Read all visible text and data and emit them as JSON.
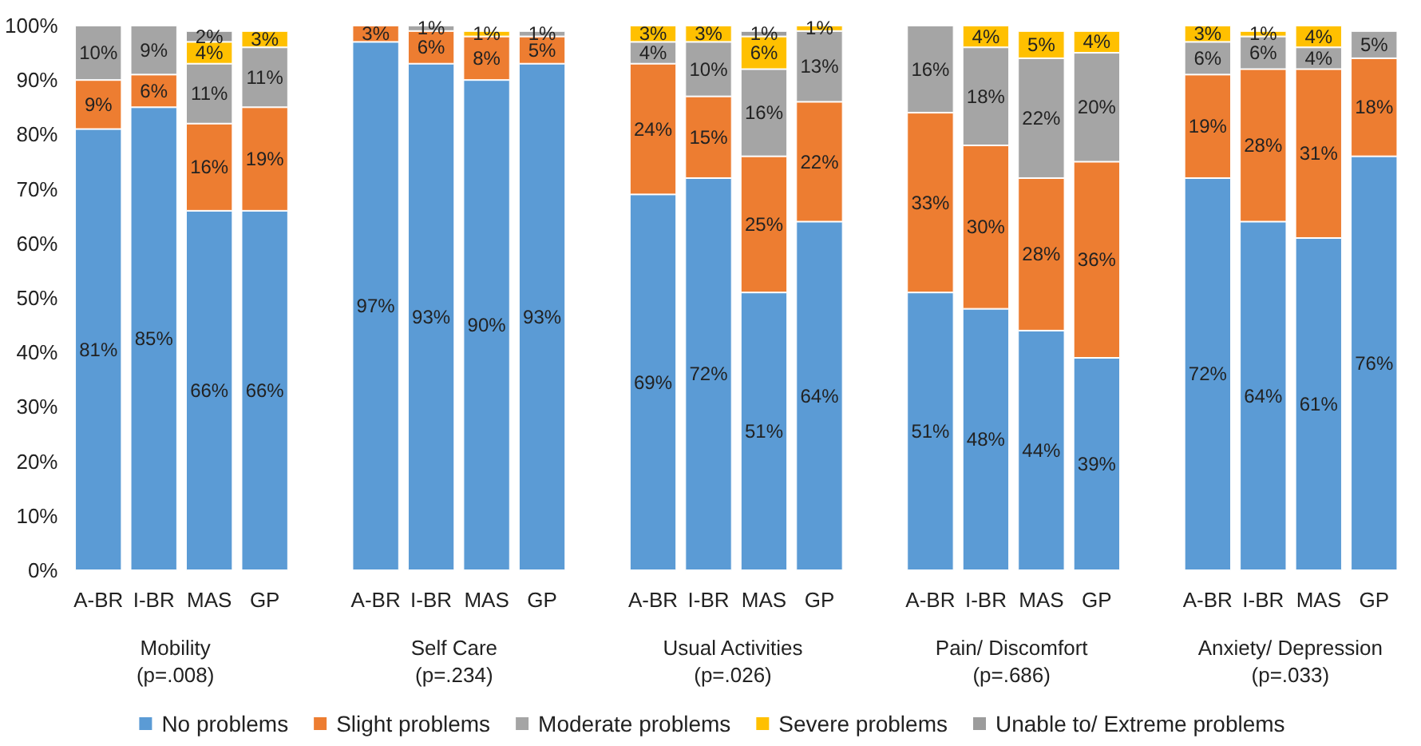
{
  "chart_data": {
    "type": "bar",
    "stacked": true,
    "categories": [
      "A-BR",
      "I-BR",
      "MAS",
      "GP",
      null,
      "A-BR",
      "I-BR",
      "MAS",
      "GP",
      null,
      "A-BR",
      "I-BR",
      "MAS",
      "GP",
      null,
      "A-BR",
      "I-BR",
      "MAS",
      "GP",
      null,
      "A-BR",
      "I-BR",
      "MAS",
      "GP"
    ],
    "series": [
      {
        "name": "No problems",
        "color": "#5b9bd5",
        "values": [
          81,
          85,
          66,
          66,
          null,
          97,
          93,
          90,
          93,
          null,
          69,
          72,
          51,
          64,
          null,
          51,
          48,
          44,
          39,
          null,
          72,
          64,
          61,
          76
        ],
        "value_labels": [
          "81%",
          "85%",
          "66%",
          "66%",
          null,
          "97%",
          "93%",
          "90%",
          "93%",
          null,
          "69%",
          "72%",
          "51%",
          "64%",
          null,
          "51%",
          "48%",
          "44%",
          "39%",
          null,
          "72%",
          "64%",
          "61%",
          "76%"
        ]
      },
      {
        "name": "Slight problems",
        "color": "#ed7d31",
        "values": [
          9,
          6,
          16,
          19,
          null,
          3,
          6,
          8,
          5,
          null,
          24,
          15,
          25,
          22,
          null,
          33,
          30,
          28,
          36,
          null,
          19,
          28,
          31,
          18
        ],
        "value_labels": [
          "9%",
          "6%",
          "16%",
          "19%",
          null,
          "3%",
          "6%",
          "8%",
          "5%",
          null,
          "24%",
          "15%",
          "25%",
          "22%",
          null,
          "33%",
          "30%",
          "28%",
          "36%",
          null,
          "19%",
          "28%",
          "31%",
          "18%"
        ]
      },
      {
        "name": "Moderate problems",
        "color": "#a5a5a5",
        "values": [
          10,
          9,
          11,
          11,
          null,
          null,
          1,
          null,
          1,
          null,
          4,
          10,
          16,
          13,
          null,
          16,
          18,
          22,
          20,
          null,
          6,
          6,
          4,
          5
        ],
        "value_labels": [
          "10%",
          "9%",
          "11%",
          "11%",
          null,
          null,
          "1%",
          null,
          "1%",
          null,
          "4%",
          "10%",
          "16%",
          "13%",
          null,
          "16%",
          "18%",
          "22%",
          "20%",
          null,
          "6%",
          "6%",
          "4%",
          "5%"
        ]
      },
      {
        "name": "Severe problems",
        "color": "#ffc000",
        "values": [
          null,
          null,
          4,
          3,
          null,
          null,
          null,
          1,
          null,
          null,
          3,
          3,
          6,
          1,
          null,
          null,
          4,
          5,
          4,
          null,
          3,
          1,
          4,
          null
        ],
        "value_labels": [
          null,
          null,
          "4%",
          "3%",
          null,
          null,
          null,
          "1%",
          null,
          null,
          "3%",
          "3%",
          "6%",
          "1%",
          null,
          null,
          "4%",
          "5%",
          "4%",
          null,
          "3%",
          "1%",
          "4%",
          null
        ]
      },
      {
        "name": "Unable to/ Extreme problems",
        "color": "#9c9c9c",
        "values": [
          null,
          null,
          2,
          null,
          null,
          null,
          null,
          null,
          null,
          null,
          null,
          null,
          1,
          null,
          null,
          null,
          null,
          null,
          null,
          null,
          null,
          null,
          null,
          null
        ],
        "value_labels": [
          null,
          null,
          "2%",
          null,
          null,
          null,
          null,
          null,
          null,
          null,
          null,
          null,
          "1%",
          null,
          null,
          null,
          null,
          null,
          null,
          null,
          null,
          null,
          null,
          null
        ]
      }
    ],
    "ylim": [
      0,
      100
    ],
    "yticks": [
      {
        "value": 0,
        "label": "0%"
      },
      {
        "value": 10,
        "label": "10%"
      },
      {
        "value": 20,
        "label": "20%"
      },
      {
        "value": 30,
        "label": "30%"
      },
      {
        "value": 40,
        "label": "40%"
      },
      {
        "value": 50,
        "label": "50%"
      },
      {
        "value": 60,
        "label": "60%"
      },
      {
        "value": 70,
        "label": "70%"
      },
      {
        "value": 80,
        "label": "80%"
      },
      {
        "value": 90,
        "label": "90%"
      },
      {
        "value": 100,
        "label": "100%"
      }
    ],
    "annotations": [
      "Mobility\n(p=.008)",
      "Self Care\n(p=.234)",
      "Usual Activities\n(p=.026)",
      "Pain/ Discomfort\n(p=.686)",
      "Anxiety/ Depression\n(p=.033)"
    ],
    "grid": false,
    "legend": "bottom"
  }
}
